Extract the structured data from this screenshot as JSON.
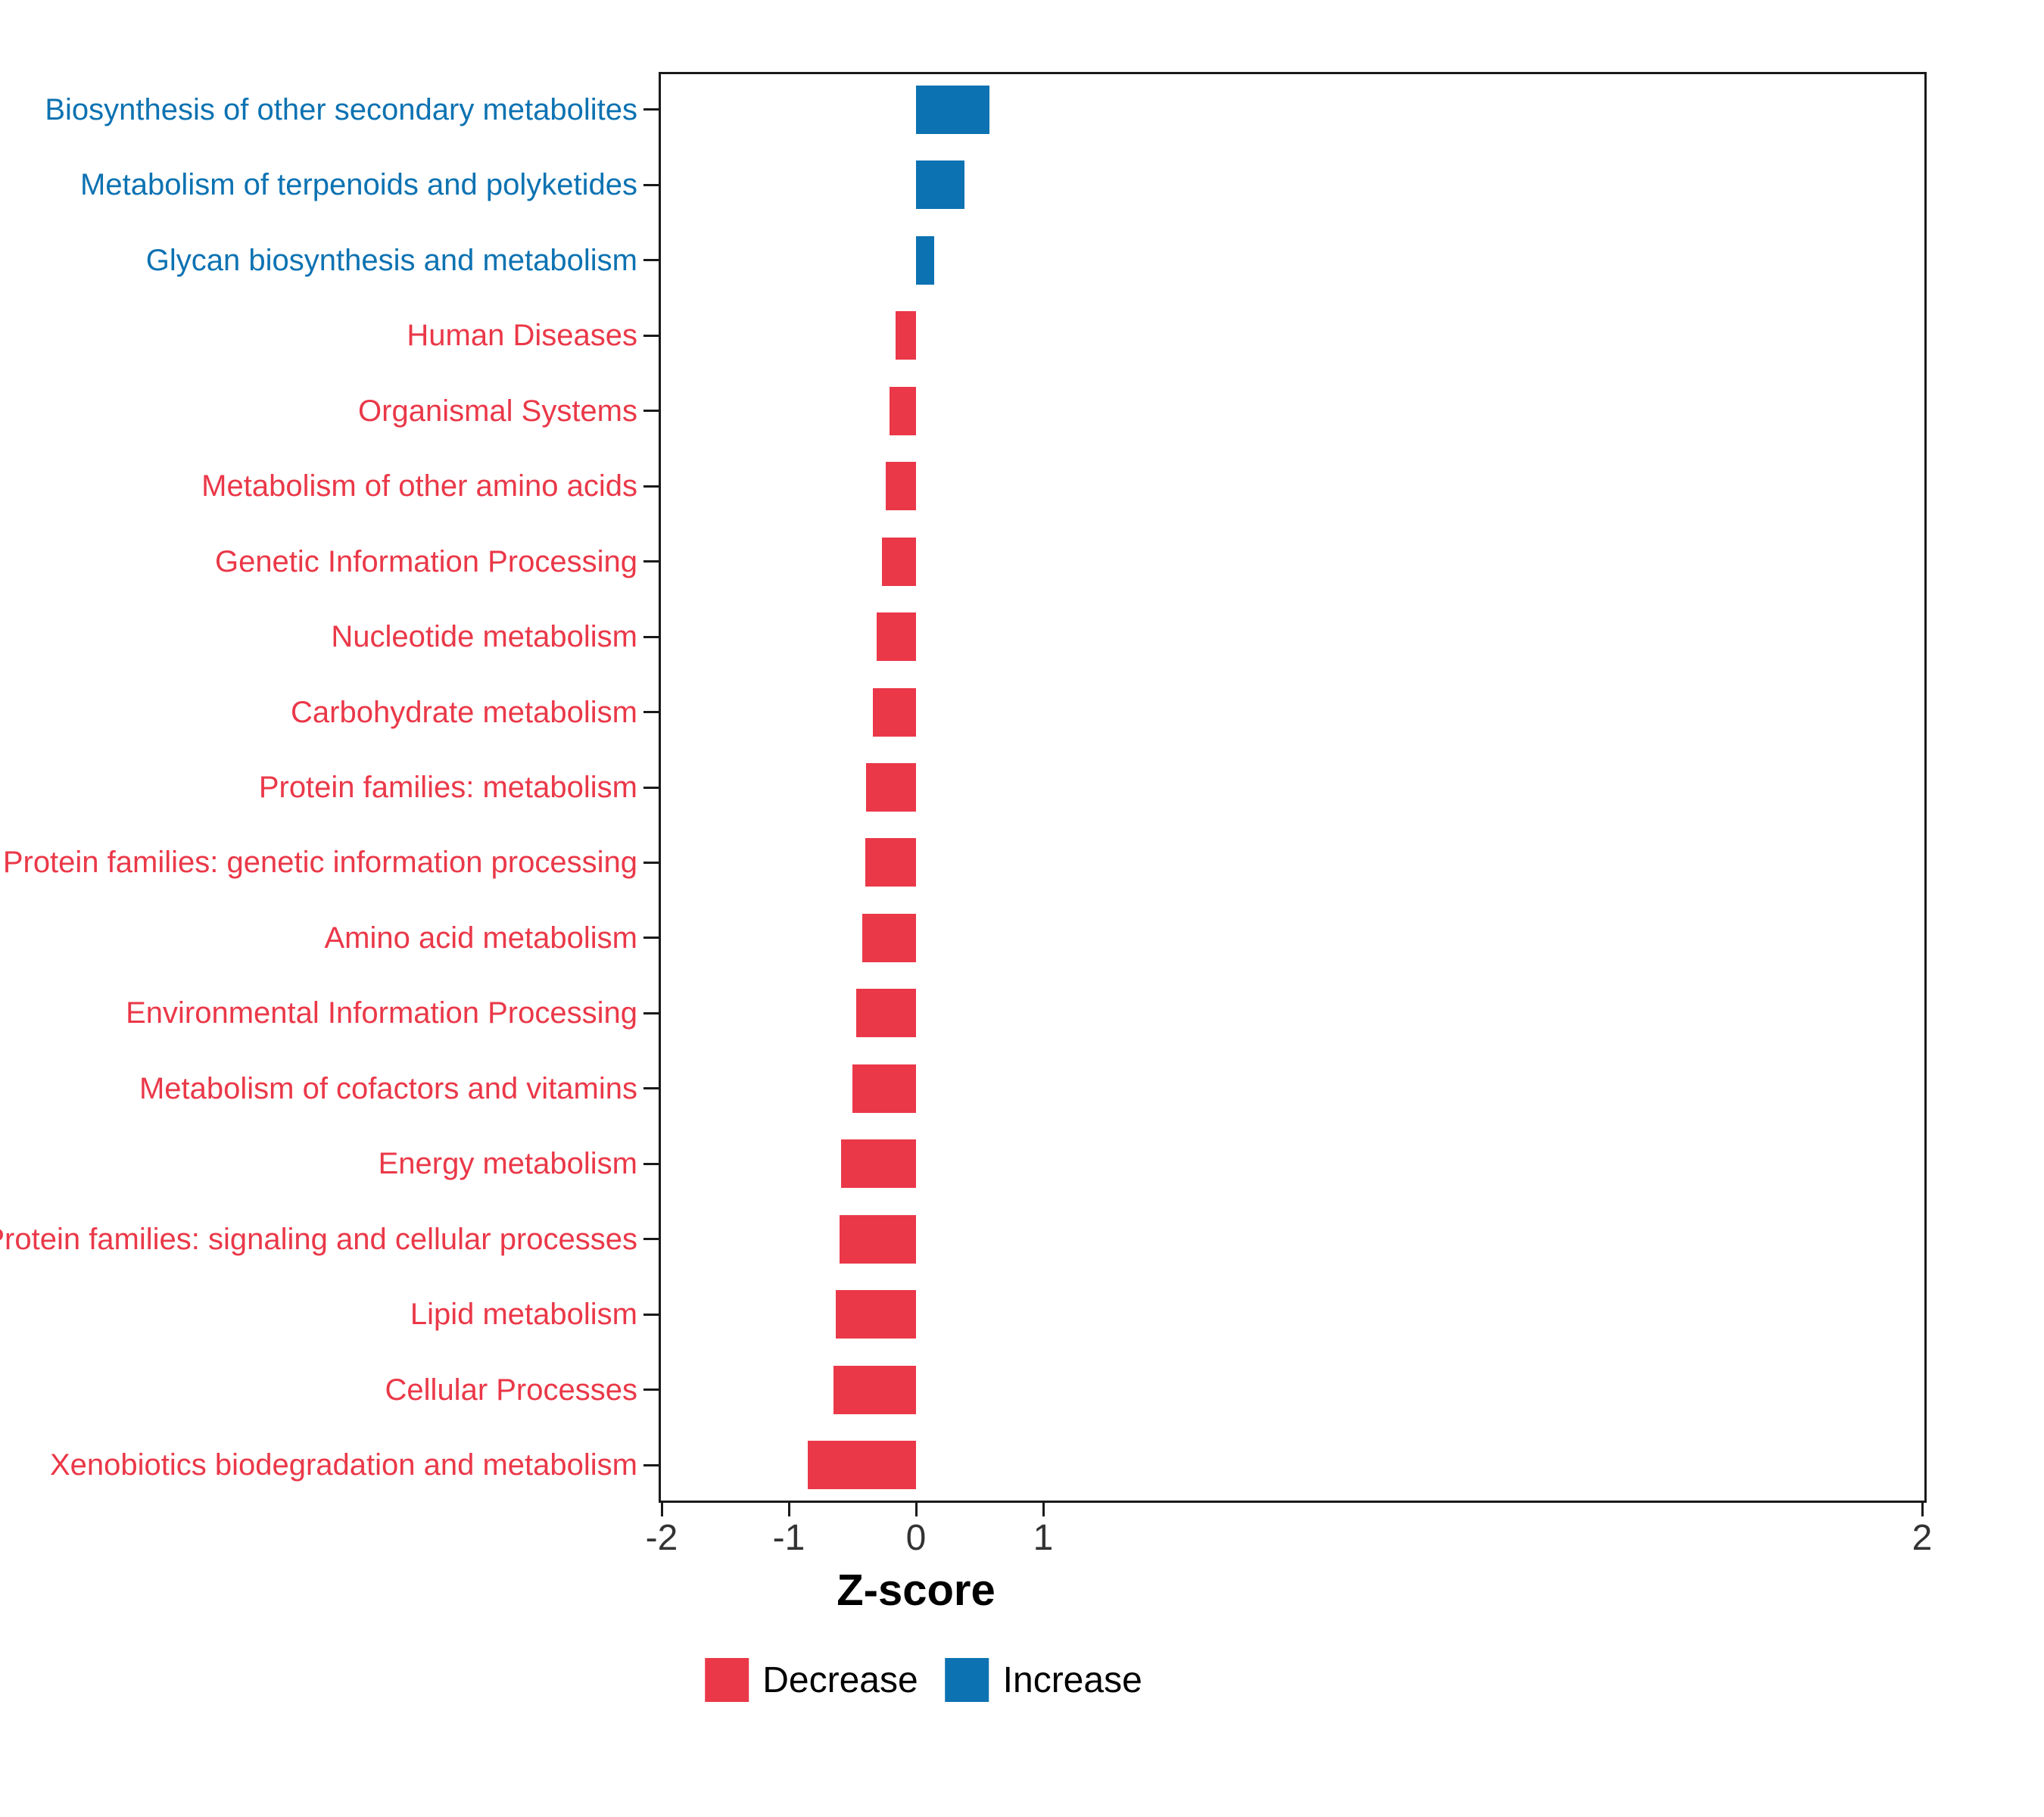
{
  "chart_data": {
    "type": "bar",
    "orientation": "horizontal",
    "title": "",
    "xlabel": "Z-score",
    "ylabel": "",
    "x_ticks": [
      -2,
      -1,
      0,
      1,
      2
    ],
    "grid": false,
    "legend_position": "bottom",
    "categories": [
      "Biosynthesis of other secondary metabolites",
      "Metabolism of terpenoids and polyketides",
      "Glycan biosynthesis and metabolism",
      "Human Diseases",
      "Organismal Systems",
      "Metabolism of other amino acids",
      "Genetic Information Processing",
      "Nucleotide metabolism",
      "Carbohydrate metabolism",
      "Protein families: metabolism",
      "Protein families: genetic information processing",
      "Amino acid metabolism",
      "Environmental Information Processing",
      "Metabolism of cofactors and vitamins",
      "Energy metabolism",
      "Protein families: signaling and cellular processes",
      "Lipid metabolism",
      "Cellular Processes",
      "Xenobiotics biodegradation and metabolism"
    ],
    "values": [
      0.58,
      0.38,
      0.14,
      -0.16,
      -0.21,
      -0.24,
      -0.27,
      -0.31,
      -0.34,
      -0.39,
      -0.4,
      -0.42,
      -0.47,
      -0.5,
      -0.59,
      -0.6,
      -0.63,
      -0.65,
      -0.85
    ],
    "colors": {
      "increase": "#0C72B2",
      "decrease": "#EA3848",
      "axis": "#1a1a1a",
      "tick_text": "#333333"
    },
    "legend": [
      {
        "label": "Decrease",
        "color": "#EA3848"
      },
      {
        "label": "Increase",
        "color": "#0C72B2"
      }
    ]
  }
}
